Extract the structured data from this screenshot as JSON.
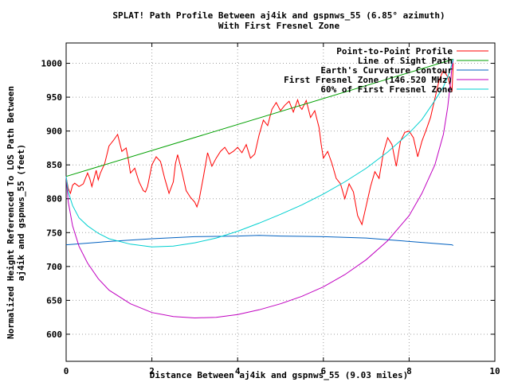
{
  "chart_data": {
    "type": "line",
    "title": "SPLAT! Path Profile Between aj4ik and gspnws_55 (6.85° azimuth)",
    "subtitle": "With First Fresnel Zone",
    "ylabel_line1": "Normalized Height Referenced To LOS Path Between",
    "ylabel_line2": "aj4ik and gspnws_55 (feet)",
    "xlabel": "Distance Between aj4ik and gspnws_55 (9.03 miles)",
    "xlim": [
      0,
      10
    ],
    "ylim": [
      560,
      1030
    ],
    "xticks": [
      0,
      2,
      4,
      6,
      8,
      10
    ],
    "yticks": [
      600,
      650,
      700,
      750,
      800,
      850,
      900,
      950,
      1000
    ],
    "grid": true,
    "legend_position": "top-right",
    "series": [
      {
        "name": "Point-to-Point Profile",
        "color": "#ff0000",
        "x": [
          0.0,
          0.05,
          0.1,
          0.15,
          0.2,
          0.3,
          0.4,
          0.5,
          0.55,
          0.6,
          0.7,
          0.75,
          0.8,
          0.9,
          1.0,
          1.05,
          1.1,
          1.2,
          1.3,
          1.4,
          1.45,
          1.5,
          1.6,
          1.7,
          1.8,
          1.85,
          1.9,
          2.0,
          2.1,
          2.2,
          2.3,
          2.4,
          2.5,
          2.55,
          2.6,
          2.7,
          2.8,
          2.9,
          3.0,
          3.05,
          3.1,
          3.2,
          3.3,
          3.4,
          3.5,
          3.6,
          3.7,
          3.8,
          3.9,
          4.0,
          4.1,
          4.2,
          4.3,
          4.4,
          4.5,
          4.6,
          4.7,
          4.8,
          4.9,
          5.0,
          5.1,
          5.2,
          5.3,
          5.4,
          5.45,
          5.5,
          5.6,
          5.7,
          5.8,
          5.9,
          5.95,
          6.0,
          6.1,
          6.2,
          6.3,
          6.4,
          6.5,
          6.6,
          6.7,
          6.8,
          6.9,
          7.0,
          7.1,
          7.2,
          7.3,
          7.4,
          7.5,
          7.6,
          7.7,
          7.8,
          7.9,
          8.0,
          8.1,
          8.2,
          8.3,
          8.4,
          8.5,
          8.6,
          8.7,
          8.8,
          8.9,
          9.0,
          9.03
        ],
        "y": [
          832,
          815,
          808,
          820,
          823,
          818,
          822,
          838,
          830,
          818,
          842,
          828,
          838,
          852,
          878,
          882,
          886,
          895,
          870,
          875,
          858,
          838,
          845,
          825,
          812,
          810,
          818,
          850,
          862,
          855,
          830,
          808,
          825,
          852,
          865,
          840,
          812,
          802,
          795,
          788,
          798,
          832,
          868,
          848,
          860,
          870,
          876,
          866,
          870,
          876,
          868,
          880,
          860,
          866,
          894,
          916,
          908,
          932,
          942,
          930,
          938,
          944,
          928,
          946,
          936,
          932,
          945,
          920,
          930,
          905,
          880,
          860,
          870,
          852,
          830,
          822,
          800,
          822,
          810,
          775,
          762,
          790,
          818,
          840,
          830,
          868,
          890,
          880,
          848,
          885,
          898,
          900,
          890,
          862,
          885,
          902,
          920,
          948,
          975,
          990,
          980,
          958,
          1000
        ]
      },
      {
        "name": "Line of Sight Path",
        "color": "#00a000",
        "x": [
          0,
          9.03
        ],
        "y": [
          833,
          1006
        ]
      },
      {
        "name": "Earth's Curvature Contour",
        "color": "#0060c0",
        "x": [
          0,
          1,
          2,
          3,
          4,
          4.5,
          5,
          6,
          7,
          8,
          9,
          9.03
        ],
        "y": [
          732,
          737,
          741,
          744,
          745,
          746,
          745,
          744,
          742,
          737,
          732,
          731
        ]
      },
      {
        "name": "First Fresnel Zone (146.520 MHz)",
        "color": "#c000c0",
        "x": [
          0,
          0.05,
          0.15,
          0.3,
          0.5,
          0.75,
          1.0,
          1.5,
          2.0,
          2.5,
          3.0,
          3.5,
          4.0,
          4.5,
          5.0,
          5.5,
          6.0,
          6.5,
          7.0,
          7.5,
          8.0,
          8.3,
          8.6,
          8.8,
          8.9,
          8.97,
          9.0,
          9.03
        ],
        "y": [
          833,
          795,
          760,
          730,
          705,
          682,
          665,
          645,
          632,
          626,
          624,
          625,
          629,
          636,
          645,
          656,
          670,
          688,
          710,
          738,
          775,
          808,
          850,
          895,
          935,
          975,
          995,
          1006
        ]
      },
      {
        "name": "60% of First Fresnel Zone",
        "color": "#00d0d0",
        "x": [
          0,
          0.05,
          0.15,
          0.3,
          0.5,
          0.75,
          1.0,
          1.5,
          2.0,
          2.5,
          3.0,
          3.5,
          4.0,
          4.5,
          5.0,
          5.5,
          6.0,
          6.5,
          7.0,
          7.5,
          8.0,
          8.3,
          8.6,
          8.8,
          8.9,
          8.97,
          9.0,
          9.03
        ],
        "y": [
          833,
          810,
          790,
          772,
          760,
          749,
          741,
          733,
          729,
          730,
          735,
          742,
          752,
          764,
          777,
          791,
          807,
          825,
          845,
          869,
          897,
          917,
          945,
          965,
          980,
          993,
          1000,
          1006
        ]
      }
    ]
  }
}
